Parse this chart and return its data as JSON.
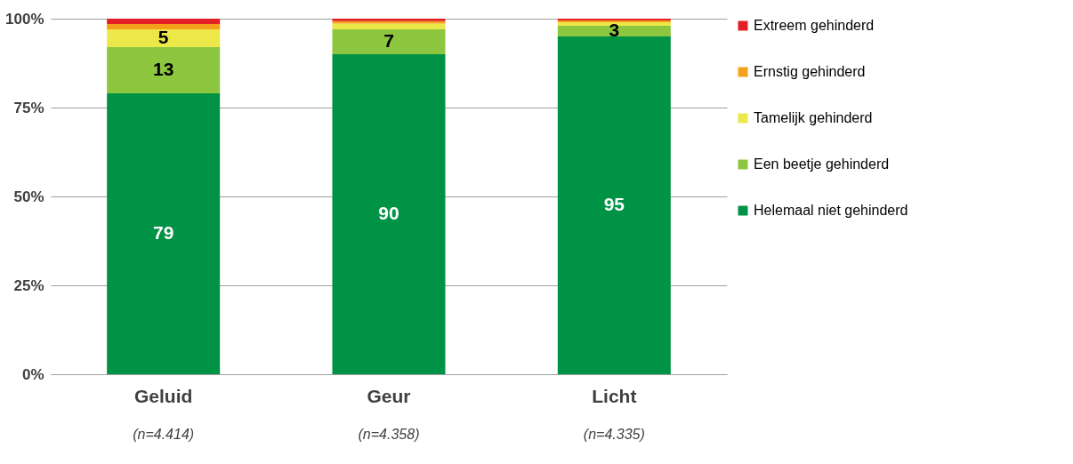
{
  "chart_data": {
    "type": "bar",
    "stacked": true,
    "categories": [
      "Geluid",
      "Geur",
      "Licht"
    ],
    "series": [
      {
        "name": "Helemaal niet gehinderd",
        "color": "#009245",
        "values": [
          79,
          90,
          95
        ],
        "value_labels": [
          "79",
          "90",
          "95"
        ]
      },
      {
        "name": "Een beetje gehinderd",
        "color": "#8dc63f",
        "values": [
          13,
          7,
          3
        ],
        "value_labels": [
          "13",
          "7",
          "3"
        ]
      },
      {
        "name": "Tamelijk gehinderd",
        "color": "#ede84a",
        "values": [
          5,
          1.6,
          1
        ],
        "value_labels": [
          "5",
          null,
          null
        ]
      },
      {
        "name": "Ernstig gehinderd",
        "color": "#f5a01a",
        "values": [
          1.5,
          0.7,
          0.5
        ],
        "value_labels": [
          null,
          null,
          null
        ]
      },
      {
        "name": "Extreem gehinderd",
        "color": "#e31e24",
        "values": [
          1.5,
          0.7,
          0.5
        ],
        "value_labels": [
          null,
          null,
          null
        ]
      }
    ],
    "ylim": [
      0,
      100
    ],
    "yticks": [
      {
        "value": 0,
        "label": "0%"
      },
      {
        "value": 25,
        "label": "25%"
      },
      {
        "value": 50,
        "label": "50%"
      },
      {
        "value": 75,
        "label": "75%"
      },
      {
        "value": 100,
        "label": "100%"
      }
    ],
    "grid": "y",
    "legend": "right",
    "annotations": [
      "(n=4.414)",
      "(n=4.358)",
      "(n=4.335)"
    ]
  }
}
